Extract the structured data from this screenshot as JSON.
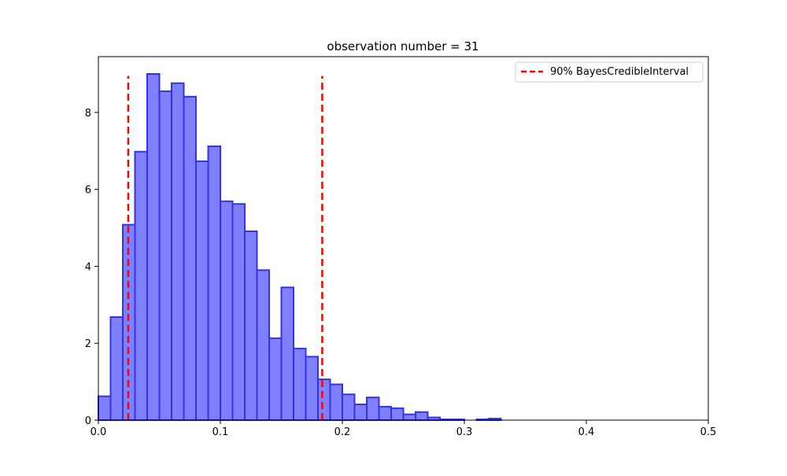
{
  "chart_data": {
    "type": "bar",
    "title": "observation number = 31",
    "xlabel": "",
    "ylabel": "",
    "xlim": [
      0,
      0.5
    ],
    "ylim": [
      0,
      9.45
    ],
    "x_ticks": [
      "0.0",
      "0.1",
      "0.2",
      "0.3",
      "0.4",
      "0.5"
    ],
    "x_tick_values": [
      0,
      0.1,
      0.2,
      0.3,
      0.4,
      0.5
    ],
    "y_ticks": [
      "0",
      "2",
      "4",
      "6",
      "8"
    ],
    "y_tick_values": [
      0,
      2,
      4,
      6,
      8
    ],
    "grid": false,
    "legend_position": "top-right",
    "bin_width": 0.01,
    "bin_edges_start": 0.0,
    "values": [
      0.62,
      2.68,
      5.08,
      6.98,
      9.0,
      8.55,
      8.76,
      8.41,
      6.73,
      7.12,
      5.69,
      5.62,
      4.91,
      3.9,
      2.13,
      3.45,
      1.86,
      1.65,
      1.06,
      0.93,
      0.67,
      0.41,
      0.59,
      0.35,
      0.31,
      0.15,
      0.21,
      0.07,
      0.02,
      0.02,
      0.0,
      0.02,
      0.04
    ],
    "bar_fill": "#8080ff",
    "bar_edge": "#3333e6",
    "reference_lines": [
      {
        "name": "90% BayesCredibleInterval",
        "x": 0.0245,
        "y_top": 8.95,
        "color": "#ff0000",
        "style": "dashed"
      },
      {
        "name": "90% BayesCredibleInterval",
        "x": 0.1835,
        "y_top": 8.95,
        "color": "#ff0000",
        "style": "dashed"
      }
    ],
    "legend": [
      {
        "label": "90% BayesCredibleInterval",
        "color": "#ff0000",
        "style": "dashed"
      }
    ]
  }
}
